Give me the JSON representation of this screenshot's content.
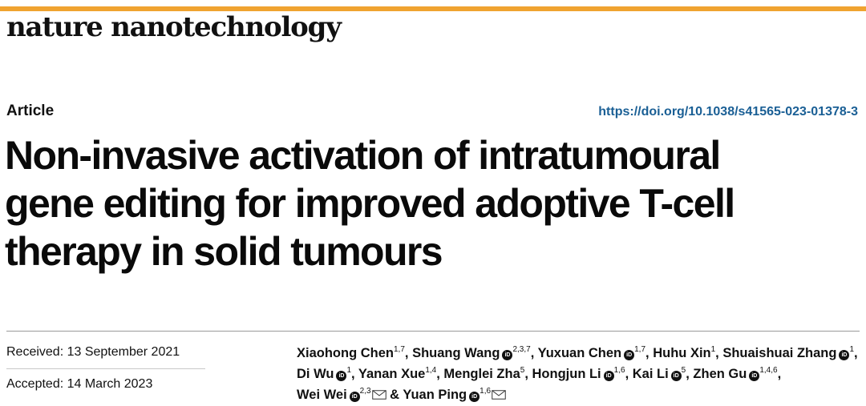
{
  "journal": "nature nanotechnology",
  "colors": {
    "accent_bar": "#f0a330",
    "doi_link": "#1a5f95"
  },
  "article_type": "Article",
  "doi": "https://doi.org/10.1038/s41565-023-01378-3",
  "title_lines": [
    "Non-invasive activation of intratumoural",
    "gene editing for improved adoptive T-cell",
    "therapy in solid tumours"
  ],
  "dates": {
    "received": "Received: 13 September 2021",
    "accepted": "Accepted: 14 March 2023"
  },
  "orcid_glyph": "iD",
  "authors": [
    {
      "name": "Xiaohong Chen",
      "aff": "1,7",
      "orcid": false,
      "email": false,
      "sep": ", "
    },
    {
      "name": "Shuang Wang",
      "aff": "2,3,7",
      "orcid": true,
      "email": false,
      "sep": ", "
    },
    {
      "name": "Yuxuan Chen",
      "aff": "1,7",
      "orcid": true,
      "email": false,
      "sep": ", "
    },
    {
      "name": "Huhu Xin",
      "aff": "1",
      "orcid": false,
      "email": false,
      "sep": ", "
    },
    {
      "name": "Shuaishuai Zhang",
      "aff": "1",
      "orcid": true,
      "email": false,
      "sep": ", "
    },
    {
      "name": "Di Wu",
      "aff": "1",
      "orcid": true,
      "email": false,
      "sep": ", "
    },
    {
      "name": "Yanan Xue",
      "aff": "1,4",
      "orcid": false,
      "email": false,
      "sep": ", "
    },
    {
      "name": "Menglei Zha",
      "aff": "5",
      "orcid": false,
      "email": false,
      "sep": ", "
    },
    {
      "name": "Hongjun Li",
      "aff": "1,6",
      "orcid": true,
      "email": false,
      "sep": ", "
    },
    {
      "name": "Kai Li",
      "aff": "5",
      "orcid": true,
      "email": false,
      "sep": ", "
    },
    {
      "name": "Zhen Gu",
      "aff": "1,4,6",
      "orcid": true,
      "email": false,
      "sep": ", "
    },
    {
      "name": "Wei Wei",
      "aff": "2,3",
      "orcid": true,
      "email": true,
      "sep": " & "
    },
    {
      "name": "Yuan Ping",
      "aff": "1,6",
      "orcid": true,
      "email": true,
      "sep": ""
    }
  ]
}
